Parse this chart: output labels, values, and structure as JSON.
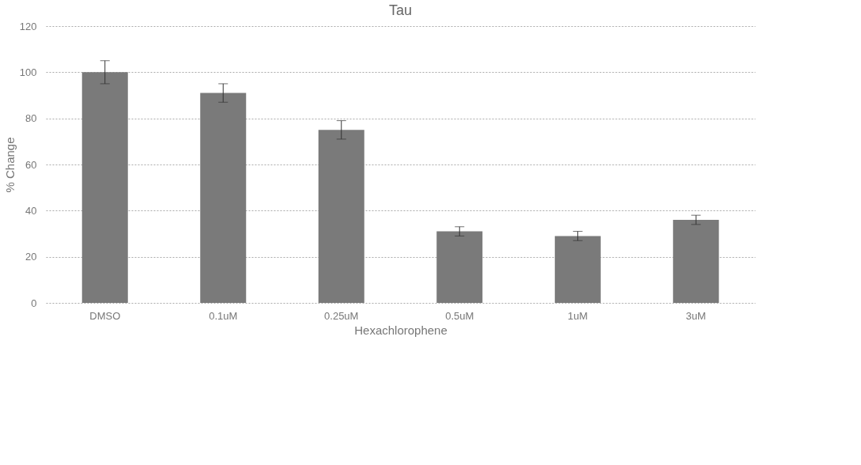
{
  "chart_data": {
    "type": "bar",
    "title": "Tau",
    "xlabel": "Hexachlorophene",
    "ylabel": "% Change",
    "categories": [
      "DMSO",
      "0.1uM",
      "0.25uM",
      "0.5uM",
      "1uM",
      "3uM"
    ],
    "values": [
      100,
      91,
      75,
      31,
      29,
      36
    ],
    "errors": [
      5,
      4,
      4,
      2,
      2,
      2
    ],
    "color": "#7a7a7a",
    "ylim": [
      0,
      120
    ],
    "yticks": [
      0,
      20,
      40,
      60,
      80,
      100,
      120
    ],
    "grid": "y"
  }
}
